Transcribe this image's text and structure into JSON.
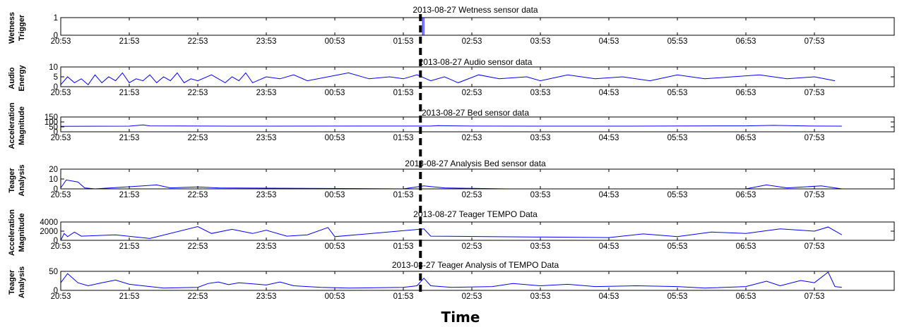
{
  "figure": {
    "xlabel": "Time",
    "x_ticks": [
      "20:53",
      "21:53",
      "22:53",
      "23:53",
      "00:53",
      "01:53",
      "02:53",
      "03:53",
      "04:53",
      "05:53",
      "06:53",
      "07:53"
    ],
    "event_marker": "dashed vertical line at ~02:08",
    "colors": {
      "series": "#0000ff",
      "marker": "#000000",
      "axes": "#000000"
    }
  },
  "chart_data": [
    {
      "type": "line",
      "title": "2013-08-27  Wetness sensor data",
      "ylabel_lines": [
        "Wetness",
        "Trigger"
      ],
      "y_ticks": [
        "0",
        "1"
      ],
      "ylim": [
        0,
        1
      ],
      "x_ticks": [
        "20:53",
        "21:53",
        "22:53",
        "23:53",
        "00:53",
        "01:53",
        "02:53",
        "03:53",
        "04:53",
        "05:53",
        "06:53",
        "07:53"
      ],
      "series": [
        {
          "values": [
            [
              0,
              0
            ],
            [
              5.28,
              0
            ],
            [
              5.28,
              1
            ],
            [
              5.3,
              1
            ],
            [
              5.3,
              0
            ],
            [
              11.4,
              0
            ]
          ]
        }
      ]
    },
    {
      "type": "line",
      "title": "2013-08-27  Audio sensor data",
      "ylabel_lines": [
        "Audio",
        "Energy"
      ],
      "y_ticks": [
        "0",
        "5",
        "10"
      ],
      "ylim": [
        0,
        10
      ],
      "x_ticks": [
        "20:53",
        "21:53",
        "22:53",
        "23:53",
        "00:53",
        "01:53",
        "02:53",
        "03:53",
        "04:53",
        "05:53",
        "06:53",
        "07:53"
      ],
      "series": [
        {
          "values": [
            [
              0,
              1
            ],
            [
              0.1,
              5
            ],
            [
              0.2,
              2
            ],
            [
              0.3,
              4
            ],
            [
              0.4,
              1
            ],
            [
              0.5,
              6
            ],
            [
              0.6,
              2
            ],
            [
              0.7,
              5
            ],
            [
              0.8,
              3
            ],
            [
              0.9,
              7
            ],
            [
              1.0,
              2
            ],
            [
              1.1,
              4
            ],
            [
              1.2,
              3
            ],
            [
              1.3,
              6
            ],
            [
              1.4,
              2
            ],
            [
              1.5,
              5
            ],
            [
              1.6,
              3
            ],
            [
              1.7,
              7
            ],
            [
              1.8,
              2
            ],
            [
              1.9,
              4
            ],
            [
              2.0,
              3
            ],
            [
              2.2,
              6
            ],
            [
              2.4,
              2
            ],
            [
              2.5,
              5
            ],
            [
              2.6,
              3
            ],
            [
              2.7,
              7
            ],
            [
              2.8,
              2
            ],
            [
              3.0,
              5
            ],
            [
              3.2,
              4
            ],
            [
              3.4,
              6
            ],
            [
              3.6,
              3
            ],
            [
              4.2,
              7
            ],
            [
              4.5,
              4
            ],
            [
              4.8,
              5
            ],
            [
              5.0,
              4
            ],
            [
              5.2,
              6
            ],
            [
              5.4,
              3
            ],
            [
              5.6,
              5
            ],
            [
              5.8,
              2
            ],
            [
              6.1,
              6
            ],
            [
              6.4,
              4
            ],
            [
              6.8,
              5
            ],
            [
              7.0,
              3
            ],
            [
              7.4,
              6
            ],
            [
              7.8,
              4
            ],
            [
              8.2,
              5
            ],
            [
              8.6,
              3
            ],
            [
              9.0,
              6
            ],
            [
              9.4,
              4
            ],
            [
              9.8,
              5
            ],
            [
              10.2,
              6
            ],
            [
              10.6,
              4
            ],
            [
              11.0,
              5
            ],
            [
              11.3,
              3
            ]
          ]
        }
      ]
    },
    {
      "type": "line",
      "title": "2013-08-27  Bed sensor data",
      "ylabel_lines": [
        "Acceleration",
        "Magnitude"
      ],
      "y_ticks": [
        "0",
        "50",
        "100",
        "150"
      ],
      "ylim": [
        0,
        150
      ],
      "x_ticks": [
        "20:53",
        "21:53",
        "22:53",
        "23:53",
        "00:53",
        "01:53",
        "02:53",
        "03:53",
        "04:53",
        "05:53",
        "06:53",
        "07:53"
      ],
      "series": [
        {
          "values": [
            [
              0,
              55
            ],
            [
              1.0,
              57
            ],
            [
              1.2,
              70
            ],
            [
              1.3,
              60
            ],
            [
              2.5,
              57
            ],
            [
              5.4,
              58
            ],
            [
              5.5,
              62
            ],
            [
              6.0,
              58
            ],
            [
              8.0,
              57
            ],
            [
              10.0,
              60
            ],
            [
              10.4,
              65
            ],
            [
              11.0,
              58
            ],
            [
              11.4,
              57
            ]
          ]
        }
      ]
    },
    {
      "type": "line",
      "title": "2013-08-27  Analysis Bed sensor data",
      "ylabel_lines": [
        "Teager",
        "Analysis"
      ],
      "y_ticks": [
        "0",
        "10",
        "20"
      ],
      "ylim": [
        0,
        20
      ],
      "x_ticks": [
        "20:53",
        "21:53",
        "22:53",
        "23:53",
        "00:53",
        "01:53",
        "02:53",
        "03:53",
        "04:53",
        "05:53",
        "06:53",
        "07:53"
      ],
      "series": [
        {
          "values": [
            [
              0,
              1
            ],
            [
              0.08,
              9
            ],
            [
              0.25,
              7
            ],
            [
              0.35,
              1
            ],
            [
              0.5,
              0
            ],
            [
              1.2,
              3
            ],
            [
              1.4,
              4
            ],
            [
              1.6,
              1
            ],
            [
              2.0,
              2
            ],
            [
              2.3,
              1
            ],
            [
              5.0,
              0
            ],
            [
              5.3,
              3
            ],
            [
              5.6,
              1
            ],
            [
              6.5,
              0
            ],
            [
              10.0,
              0
            ],
            [
              10.3,
              4
            ],
            [
              10.6,
              1
            ],
            [
              11.1,
              3
            ],
            [
              11.4,
              0
            ]
          ]
        }
      ]
    },
    {
      "type": "line",
      "title": "2013-08-27  Teager TEMPO Data",
      "ylabel_lines": [
        "Acceleration",
        "Magnitude"
      ],
      "y_ticks": [
        "0",
        "2000",
        "4000"
      ],
      "ylim": [
        0,
        4000
      ],
      "x_ticks": [
        "20:53",
        "21:53",
        "22:53",
        "23:53",
        "00:53",
        "01:53",
        "02:53",
        "03:53",
        "04:53",
        "05:53",
        "06:53",
        "07:53"
      ],
      "series": [
        {
          "values": [
            [
              0,
              0
            ],
            [
              0.05,
              1500
            ],
            [
              0.1,
              800
            ],
            [
              0.2,
              1800
            ],
            [
              0.3,
              900
            ],
            [
              0.8,
              1200
            ],
            [
              1.3,
              400
            ],
            [
              2.0,
              3000
            ],
            [
              2.2,
              1500
            ],
            [
              2.5,
              2400
            ],
            [
              2.8,
              1500
            ],
            [
              3.0,
              2200
            ],
            [
              3.3,
              900
            ],
            [
              3.6,
              1200
            ],
            [
              3.9,
              2800
            ],
            [
              4.0,
              800
            ],
            [
              5.3,
              2500
            ],
            [
              5.4,
              900
            ],
            [
              8.0,
              600
            ],
            [
              8.5,
              1400
            ],
            [
              9.0,
              800
            ],
            [
              9.5,
              1800
            ],
            [
              10.0,
              1500
            ],
            [
              10.5,
              2500
            ],
            [
              11.0,
              2000
            ],
            [
              11.2,
              2900
            ],
            [
              11.4,
              1200
            ]
          ]
        }
      ]
    },
    {
      "type": "line",
      "title": "2013-08-27  Teager Analysis of TEMPO Data",
      "ylabel_lines": [
        "Teager",
        "Analysis"
      ],
      "y_ticks": [
        "0",
        "50"
      ],
      "ylim": [
        0,
        50
      ],
      "x_ticks": [
        "20:53",
        "21:53",
        "22:53",
        "23:53",
        "00:53",
        "01:53",
        "02:53",
        "03:53",
        "04:53",
        "05:53",
        "06:53",
        "07:53"
      ],
      "series": [
        {
          "values": [
            [
              0,
              20
            ],
            [
              0.1,
              44
            ],
            [
              0.25,
              20
            ],
            [
              0.4,
              12
            ],
            [
              0.6,
              20
            ],
            [
              0.8,
              27
            ],
            [
              1.0,
              16
            ],
            [
              1.5,
              6
            ],
            [
              2.0,
              8
            ],
            [
              2.15,
              18
            ],
            [
              2.3,
              22
            ],
            [
              2.45,
              15
            ],
            [
              2.6,
              20
            ],
            [
              2.8,
              17
            ],
            [
              3.0,
              14
            ],
            [
              3.2,
              22
            ],
            [
              3.4,
              12
            ],
            [
              3.8,
              8
            ],
            [
              4.2,
              6
            ],
            [
              5.0,
              8
            ],
            [
              5.2,
              12
            ],
            [
              5.3,
              32
            ],
            [
              5.4,
              12
            ],
            [
              5.7,
              8
            ],
            [
              6.3,
              10
            ],
            [
              6.6,
              18
            ],
            [
              7.0,
              12
            ],
            [
              7.4,
              16
            ],
            [
              7.8,
              10
            ],
            [
              8.4,
              12
            ],
            [
              9.0,
              10
            ],
            [
              9.4,
              6
            ],
            [
              10.0,
              10
            ],
            [
              10.3,
              24
            ],
            [
              10.5,
              12
            ],
            [
              10.8,
              26
            ],
            [
              11.0,
              20
            ],
            [
              11.2,
              48
            ],
            [
              11.3,
              10
            ],
            [
              11.4,
              8
            ]
          ]
        }
      ]
    }
  ]
}
